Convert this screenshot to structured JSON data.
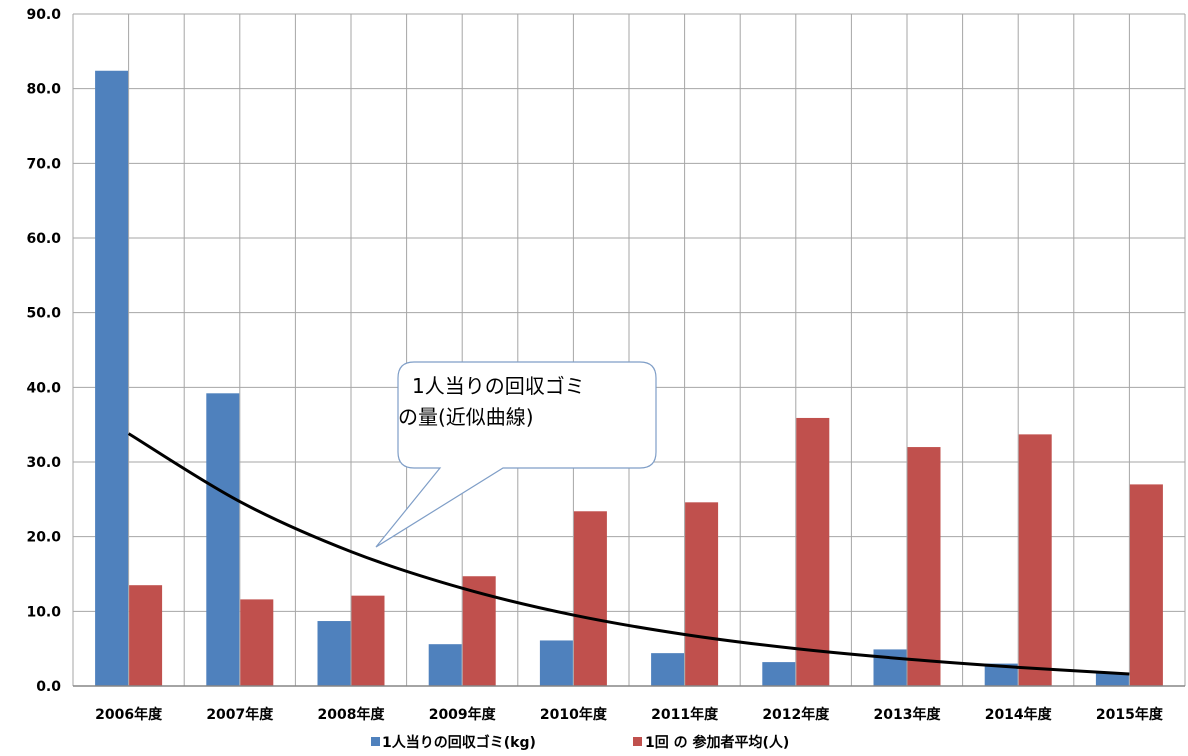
{
  "chart_data": {
    "type": "bar",
    "categories": [
      "2006年度",
      "2007年度",
      "2008年度",
      "2009年度",
      "2010年度",
      "2011年度",
      "2012年度",
      "2013年度",
      "2014年度",
      "2015年度"
    ],
    "series": [
      {
        "name": "1人当りの回収ゴミ(kg)",
        "values": [
          82.4,
          39.2,
          8.7,
          5.6,
          6.1,
          4.4,
          3.2,
          4.9,
          3.0,
          1.8
        ],
        "color": "#4f81bd"
      },
      {
        "name": "1回 の 参加者平均(人)",
        "values": [
          13.5,
          11.6,
          12.1,
          14.7,
          23.4,
          24.6,
          35.9,
          32.0,
          33.7,
          27.0
        ],
        "color": "#c0504d"
      }
    ],
    "trendline": {
      "type": "exponential",
      "series": "1人当りの回収ゴミ(kg)",
      "values": [
        33.8,
        24.7,
        18.0,
        13.1,
        9.5,
        6.9,
        5.0,
        3.6,
        2.5,
        1.6
      ],
      "color": "#000000"
    },
    "callout": {
      "lines": [
        "1人当りの回収ゴミ",
        "の量(近似曲線)"
      ]
    },
    "y_ticks": [
      "0.0",
      "10.0",
      "20.0",
      "30.0",
      "40.0",
      "50.0",
      "60.0",
      "70.0",
      "80.0",
      "90.0"
    ],
    "ylim": [
      0,
      90
    ],
    "grid": true,
    "legend_position": "bottom",
    "title": "",
    "xlabel": "",
    "ylabel": ""
  }
}
